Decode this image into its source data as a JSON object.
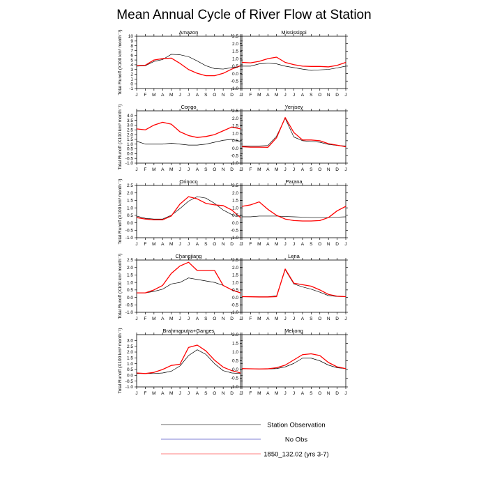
{
  "chart_data": {
    "type": "line",
    "title": "Mean Annual Cycle of River Flow at Station",
    "ylabel": "Total Runoff (X100 km³ month⁻¹)",
    "months": [
      "J",
      "F",
      "M",
      "A",
      "M",
      "J",
      "J",
      "A",
      "S",
      "O",
      "N",
      "D",
      "J"
    ],
    "legend": [
      {
        "label": "Station Observation",
        "color": "#000000"
      },
      {
        "label": "No Obs",
        "color": "#3333cc"
      },
      {
        "label": "1850_132.02 (yrs 3-7)",
        "color": "#ff0000"
      }
    ],
    "panels": [
      {
        "name": "Amazon",
        "ylim": [
          -1,
          10
        ],
        "yticks": [
          "-1",
          "0",
          "1",
          "2",
          "3",
          "4",
          "5",
          "6",
          "7",
          "8",
          "9",
          "10"
        ],
        "obs": [
          3.7,
          3.8,
          4.7,
          5.1,
          6.2,
          6.1,
          5.7,
          4.8,
          3.8,
          3.2,
          3.1,
          3.4,
          3.7
        ],
        "model": [
          3.8,
          3.9,
          5.0,
          5.3,
          5.4,
          4.3,
          3.0,
          2.2,
          1.7,
          1.7,
          2.2,
          3.1,
          3.8
        ]
      },
      {
        "name": "Mississippi",
        "ylim": [
          -1,
          2.5
        ],
        "yticks": [
          "-1.0",
          "-0.5",
          "0.0",
          "0.5",
          "1.0",
          "1.5",
          "2.0",
          "2.5"
        ],
        "obs": [
          0.5,
          0.5,
          0.65,
          0.7,
          0.65,
          0.5,
          0.4,
          0.3,
          0.22,
          0.25,
          0.28,
          0.38,
          0.5
        ],
        "model": [
          0.75,
          0.72,
          0.82,
          1.0,
          1.1,
          0.75,
          0.6,
          0.5,
          0.48,
          0.48,
          0.45,
          0.55,
          0.75
        ]
      },
      {
        "name": "Congo",
        "ylim": [
          -1,
          4.5
        ],
        "yticks": [
          "-1.0",
          "-0.5",
          "0.0",
          "0.5",
          "1.0",
          "1.5",
          "2.0",
          "2.5",
          "3.0",
          "3.5",
          "4.0"
        ],
        "obs": [
          1.3,
          1.0,
          1.0,
          1.0,
          1.1,
          1.0,
          0.9,
          0.9,
          1.0,
          1.2,
          1.4,
          1.5,
          1.3
        ],
        "model": [
          2.6,
          2.5,
          3.0,
          3.3,
          3.1,
          2.3,
          1.9,
          1.7,
          1.8,
          2.0,
          2.4,
          2.8,
          2.6
        ]
      },
      {
        "name": "Yenisey",
        "ylim": [
          -1,
          2.5
        ],
        "yticks": [
          "-1.0",
          "-0.5",
          "0.0",
          "0.5",
          "1.0",
          "1.5",
          "2.0",
          "2.5"
        ],
        "obs": [
          0.15,
          0.15,
          0.15,
          0.18,
          0.8,
          2.0,
          0.75,
          0.5,
          0.45,
          0.4,
          0.25,
          0.18,
          0.15
        ],
        "model": [
          0.1,
          0.07,
          0.07,
          0.06,
          0.7,
          2.05,
          1.05,
          0.55,
          0.55,
          0.5,
          0.3,
          0.2,
          0.1
        ]
      },
      {
        "name": "Orinoco",
        "ylim": [
          -1,
          2.5
        ],
        "yticks": [
          "-1.0",
          "-0.5",
          "0.0",
          "0.5",
          "1.0",
          "1.5",
          "2.0",
          "2.5"
        ],
        "obs": [
          0.45,
          0.3,
          0.25,
          0.25,
          0.5,
          0.95,
          1.45,
          1.75,
          1.65,
          1.3,
          0.85,
          0.55,
          0.45
        ],
        "model": [
          0.35,
          0.25,
          0.2,
          0.2,
          0.45,
          1.25,
          1.75,
          1.6,
          1.3,
          1.2,
          1.15,
          0.85,
          0.35
        ]
      },
      {
        "name": "Parana",
        "ylim": [
          -1,
          2.5
        ],
        "yticks": [
          "-1.0",
          "-0.5",
          "0.0",
          "0.5",
          "1.0",
          "1.5",
          "2.0",
          "2.5"
        ],
        "obs": [
          0.4,
          0.4,
          0.45,
          0.45,
          0.45,
          0.42,
          0.4,
          0.38,
          0.35,
          0.35,
          0.35,
          0.38,
          0.4
        ],
        "model": [
          1.1,
          1.2,
          1.4,
          0.9,
          0.5,
          0.25,
          0.15,
          0.12,
          0.12,
          0.15,
          0.35,
          0.8,
          1.1
        ]
      },
      {
        "name": "Changjiang",
        "ylim": [
          -1,
          2.5
        ],
        "yticks": [
          "-1.0",
          "-0.5",
          "0.0",
          "0.5",
          "1.0",
          "1.5",
          "2.0",
          "2.5"
        ],
        "obs": [
          0.3,
          0.3,
          0.4,
          0.55,
          0.9,
          1.0,
          1.3,
          1.2,
          1.1,
          1.0,
          0.8,
          0.5,
          0.3
        ],
        "model": [
          0.3,
          0.3,
          0.5,
          0.8,
          1.6,
          2.1,
          2.35,
          1.8,
          1.8,
          1.8,
          0.8,
          0.5,
          0.3
        ]
      },
      {
        "name": "Lena",
        "ylim": [
          -1,
          2.5
        ],
        "yticks": [
          "-1.0",
          "-0.5",
          "0.0",
          "0.5",
          "1.0",
          "1.5",
          "2.0",
          "2.5"
        ],
        "obs": [
          0.05,
          0.04,
          0.04,
          0.04,
          0.1,
          1.85,
          0.9,
          0.7,
          0.55,
          0.35,
          0.12,
          0.06,
          0.05
        ],
        "model": [
          0.05,
          0.04,
          0.03,
          0.03,
          0.05,
          1.9,
          0.95,
          0.85,
          0.75,
          0.5,
          0.2,
          0.08,
          0.05
        ]
      },
      {
        "name": "Brahmaputra+Ganges",
        "ylim": [
          -1,
          3.5
        ],
        "yticks": [
          "-1.0",
          "-0.5",
          "0.0",
          "0.5",
          "1.0",
          "1.5",
          "2.0",
          "2.5",
          "3.0"
        ],
        "obs": [
          0.15,
          0.15,
          0.15,
          0.2,
          0.35,
          0.8,
          1.7,
          2.2,
          1.8,
          1.0,
          0.4,
          0.2,
          0.15
        ],
        "model": [
          0.2,
          0.15,
          0.25,
          0.5,
          0.85,
          0.95,
          2.4,
          2.6,
          2.1,
          1.3,
          0.7,
          0.4,
          0.2
        ]
      },
      {
        "name": "Mekong",
        "ylim": [
          -1,
          2
        ],
        "yticks": [
          "-1.0",
          "-0.5",
          "0.0",
          "0.5",
          "1.0",
          "1.5",
          "2.0"
        ],
        "obs": [
          0.05,
          0.04,
          0.03,
          0.03,
          0.05,
          0.15,
          0.35,
          0.65,
          0.65,
          0.5,
          0.25,
          0.1,
          0.05
        ],
        "model": [
          0.05,
          0.04,
          0.03,
          0.04,
          0.1,
          0.25,
          0.55,
          0.85,
          0.9,
          0.8,
          0.4,
          0.15,
          0.05
        ]
      }
    ]
  }
}
